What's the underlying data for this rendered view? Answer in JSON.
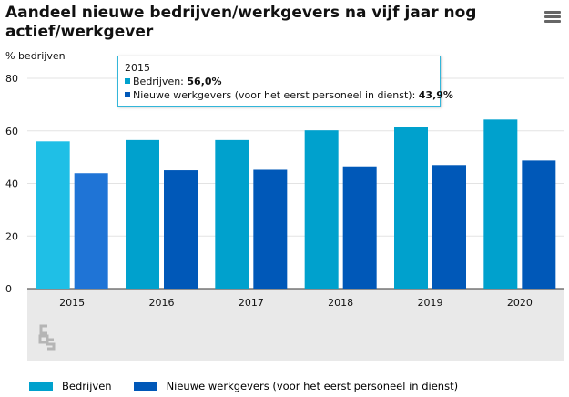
{
  "header": {
    "title": "Aandeel nieuwe bedrijven/werkgevers na vijf jaar nog actief/werkgever",
    "menu_icon": "hamburger-menu-icon"
  },
  "chart_data": {
    "type": "bar",
    "title": "Aandeel nieuwe bedrijven/werkgevers na vijf jaar nog actief/werkgever",
    "ylabel": "% bedrijven",
    "xlabel": "",
    "ylim": [
      0,
      80
    ],
    "yticks": [
      "0",
      "20",
      "40",
      "60",
      "80"
    ],
    "categories": [
      "2015",
      "2016",
      "2017",
      "2018",
      "2019",
      "2020"
    ],
    "series": [
      {
        "name": "Bedrijven",
        "values": [
          56.0,
          56.5,
          56.5,
          60.2,
          61.5,
          64.3
        ],
        "color": "#00a1cd",
        "highlight_color": "#1fbfe6"
      },
      {
        "name": "Nieuwe werkgevers (voor het eerst personeel in dienst)",
        "values": [
          43.9,
          45.0,
          45.2,
          46.5,
          47.0,
          48.7
        ],
        "color": "#0058b8",
        "highlight_color": "#1f74d6"
      }
    ],
    "highlighted_category": "2015",
    "grid": "horizontal",
    "legend_position": "bottom-left",
    "plot_background": "#ffffff",
    "axis_band_color": "#e9e9e9"
  },
  "tooltip": {
    "category": "2015",
    "rows": [
      {
        "label": "Bedrijven: ",
        "value": "56,0%",
        "color": "#00a1cd"
      },
      {
        "label": "Nieuwe werkgevers (voor het eerst personeel in dienst): ",
        "value": "43,9%",
        "color": "#0058b8"
      }
    ]
  },
  "logo": {
    "icon": "cbs-logo-icon"
  }
}
